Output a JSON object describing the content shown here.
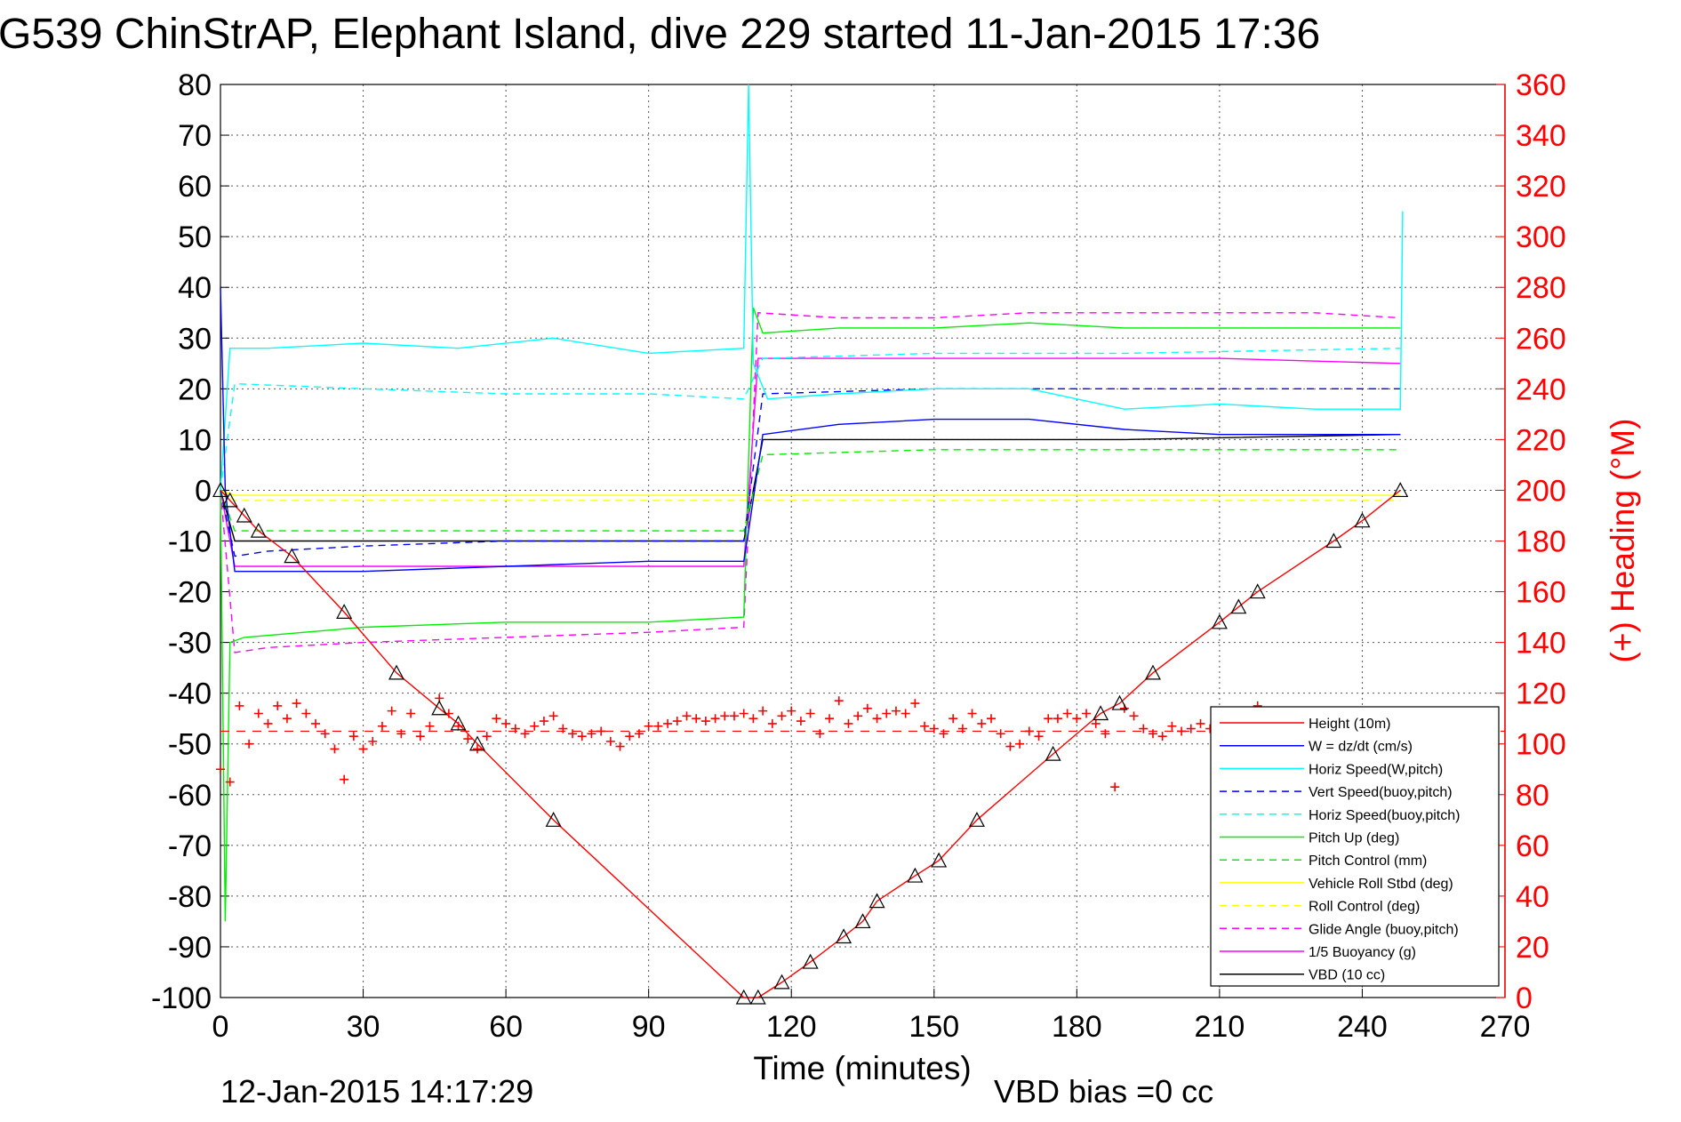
{
  "title": "G539 ChinStrAP, Elephant Island, dive 229 started 11-Jan-2015 17:36",
  "footer": {
    "timestamp": "12-Jan-2015 14:17:29",
    "vbd_bias": "VBD bias =0 cc"
  },
  "chart_data": {
    "type": "line",
    "title": "G539 ChinStrAP, Elephant Island, dive 229 started 11-Jan-2015 17:36",
    "xlabel": "Time (minutes)",
    "ylabel": "",
    "ylabel_right": "(+) Heading (°M)",
    "xlim": [
      0,
      270
    ],
    "ylim": [
      -100,
      80
    ],
    "ylim_right": [
      0,
      360
    ],
    "xticks": [
      0,
      30,
      60,
      90,
      120,
      150,
      180,
      210,
      240,
      270
    ],
    "yticks": [
      -100,
      -90,
      -80,
      -70,
      -60,
      -50,
      -40,
      -30,
      -20,
      -10,
      0,
      10,
      20,
      30,
      40,
      50,
      60,
      70,
      80
    ],
    "yticks_right": [
      0,
      20,
      40,
      60,
      80,
      100,
      120,
      140,
      160,
      180,
      200,
      220,
      240,
      260,
      280,
      300,
      320,
      340,
      360
    ],
    "grid": true,
    "legend_position": "bottom-right",
    "colors": {
      "red": "#ff0000",
      "blue": "#0000ff",
      "cyan": "#00ffff",
      "green": "#00ee00",
      "yellow": "#ffff00",
      "magenta": "#ff00ff",
      "black": "#000000"
    },
    "series": [
      {
        "name": "Height (10m)",
        "color": "#ff0000",
        "style": "solid",
        "marker": "triangle",
        "x": [
          0,
          2,
          5,
          8,
          15,
          26,
          37,
          46,
          50,
          54,
          70,
          110,
          113,
          118,
          124,
          131,
          135,
          138,
          146,
          151,
          159,
          175,
          185,
          189,
          196,
          210,
          214,
          218,
          234,
          240,
          248
        ],
        "y": [
          0,
          -2,
          -5,
          -8,
          -13,
          -24,
          -36,
          -43,
          -46,
          -50,
          -65,
          -100,
          -100,
          -97,
          -93,
          -88,
          -85,
          -81,
          -76,
          -73,
          -65,
          -52,
          -44,
          -42,
          -36,
          -26,
          -23,
          -20,
          -10,
          -6,
          0
        ]
      },
      {
        "name": "W = dz/dt (cm/s)",
        "color": "#0000ff",
        "style": "solid",
        "x": [
          0,
          1,
          3,
          10,
          30,
          60,
          90,
          110,
          111,
          114,
          130,
          150,
          170,
          190,
          210,
          230,
          248
        ],
        "y": [
          40,
          0,
          -16,
          -16,
          -16,
          -15,
          -14,
          -14,
          -8,
          11,
          13,
          14,
          14,
          12,
          11,
          11,
          11
        ]
      },
      {
        "name": "Horiz Speed(W,pitch)",
        "color": "#00ffff",
        "style": "solid",
        "x": [
          0,
          2,
          10,
          30,
          50,
          70,
          90,
          110,
          111,
          112,
          115,
          130,
          150,
          170,
          190,
          210,
          230,
          248,
          248.5
        ],
        "y": [
          0,
          28,
          28,
          29,
          28,
          30,
          27,
          28,
          80,
          25,
          18,
          19,
          20,
          20,
          16,
          17,
          16,
          16,
          55
        ]
      },
      {
        "name": "Vert Speed(buoy,pitch)",
        "color": "#0000ff",
        "style": "dashed",
        "x": [
          0,
          3,
          10,
          30,
          60,
          90,
          110,
          114,
          150,
          190,
          248
        ],
        "y": [
          0,
          -13,
          -12,
          -11,
          -10,
          -10,
          -10,
          19,
          20,
          20,
          20
        ]
      },
      {
        "name": "Horiz Speed(buoy,pitch)",
        "color": "#00ffff",
        "style": "dashed",
        "x": [
          0,
          3,
          30,
          60,
          90,
          110,
          114,
          150,
          190,
          248
        ],
        "y": [
          0,
          21,
          20,
          19,
          19,
          18,
          26,
          27,
          27,
          28
        ]
      },
      {
        "name": "Pitch Up (deg)",
        "color": "#00ee00",
        "style": "solid",
        "x": [
          0,
          1,
          2,
          5,
          30,
          60,
          90,
          110,
          112,
          114,
          130,
          150,
          170,
          190,
          210,
          230,
          248
        ],
        "y": [
          0,
          -85,
          -30,
          -29,
          -27,
          -26,
          -26,
          -25,
          36,
          31,
          32,
          32,
          33,
          32,
          32,
          32,
          32
        ]
      },
      {
        "name": "Pitch Control (mm)",
        "color": "#00ee00",
        "style": "dashed",
        "x": [
          0,
          3,
          30,
          60,
          90,
          110,
          114,
          150,
          190,
          248
        ],
        "y": [
          0,
          -8,
          -8,
          -8,
          -8,
          -8,
          7,
          8,
          8,
          8
        ]
      },
      {
        "name": "Vehicle Roll Stbd (deg)",
        "color": "#ffff00",
        "style": "solid",
        "x": [
          0,
          3,
          30,
          60,
          90,
          110,
          114,
          150,
          190,
          230,
          248
        ],
        "y": [
          0,
          -1,
          -1,
          -1,
          -1,
          -1,
          -1,
          -1,
          -1,
          -1,
          -1
        ]
      },
      {
        "name": "Roll Control (deg)",
        "color": "#ffff00",
        "style": "dashed",
        "x": [
          0,
          3,
          30,
          60,
          90,
          110,
          114,
          150,
          190,
          248
        ],
        "y": [
          0,
          -2,
          -2,
          -2,
          -2,
          -2,
          -2,
          -2,
          -2,
          -2
        ]
      },
      {
        "name": "Glide Angle (buoy,pitch)",
        "color": "#ff00ff",
        "style": "dashed",
        "x": [
          0,
          3,
          10,
          30,
          60,
          90,
          110,
          113,
          130,
          150,
          170,
          190,
          210,
          230,
          248
        ],
        "y": [
          0,
          -32,
          -31,
          -30,
          -29,
          -28,
          -27,
          35,
          34,
          34,
          35,
          35,
          35,
          35,
          34
        ]
      },
      {
        "name": "1/5 Buoyancy (g)",
        "color": "#ff00ff",
        "style": "solid",
        "x": [
          0,
          3,
          30,
          60,
          90,
          110,
          113,
          150,
          210,
          248
        ],
        "y": [
          0,
          -15,
          -15,
          -15,
          -15,
          -15,
          26,
          26,
          26,
          25
        ]
      },
      {
        "name": "VBD (10 cc)",
        "color": "#000000",
        "style": "solid",
        "x": [
          0,
          3,
          30,
          60,
          90,
          110,
          114,
          150,
          190,
          248
        ],
        "y": [
          0,
          -10,
          -10,
          -10,
          -10,
          -10,
          10,
          10,
          10,
          11
        ]
      }
    ],
    "heading": {
      "color": "#ff0000",
      "marker": "plus",
      "axis": "right",
      "x": [
        0,
        2,
        4,
        6,
        8,
        10,
        12,
        14,
        16,
        18,
        20,
        22,
        24,
        26,
        28,
        30,
        32,
        34,
        36,
        38,
        40,
        42,
        44,
        46,
        48,
        50,
        52,
        54,
        56,
        58,
        60,
        62,
        64,
        66,
        68,
        70,
        72,
        74,
        76,
        78,
        80,
        82,
        84,
        86,
        88,
        90,
        92,
        94,
        96,
        98,
        100,
        102,
        104,
        106,
        108,
        110,
        112,
        114,
        116,
        118,
        120,
        122,
        124,
        126,
        128,
        130,
        132,
        134,
        136,
        138,
        140,
        142,
        144,
        146,
        148,
        150,
        152,
        154,
        156,
        158,
        160,
        162,
        164,
        166,
        168,
        170,
        172,
        174,
        176,
        178,
        180,
        182,
        184,
        186,
        188,
        190,
        192,
        194,
        196,
        198,
        200,
        202,
        204,
        206,
        208,
        210,
        212,
        214,
        216,
        218,
        220
      ],
      "y": [
        90,
        85,
        115,
        100,
        112,
        108,
        115,
        110,
        116,
        112,
        108,
        104,
        98,
        86,
        103,
        98,
        101,
        107,
        113,
        104,
        112,
        103,
        107,
        118,
        112,
        107,
        102,
        98,
        103,
        110,
        108,
        106,
        104,
        107,
        109,
        111,
        106,
        104,
        103,
        104,
        105,
        101,
        99,
        103,
        104,
        107,
        107,
        108,
        109,
        111,
        110,
        109,
        110,
        111,
        111,
        112,
        110,
        113,
        108,
        111,
        113,
        109,
        112,
        104,
        110,
        117,
        108,
        111,
        114,
        110,
        112,
        113,
        112,
        116,
        107,
        106,
        104,
        110,
        106,
        112,
        108,
        110,
        104,
        99,
        100,
        105,
        103,
        110,
        110,
        112,
        110,
        112,
        108,
        104,
        83,
        114,
        111,
        106,
        104,
        103,
        107,
        105,
        106,
        108,
        106,
        112,
        110,
        113,
        109,
        115,
        108
      ]
    },
    "heading_mean": {
      "color": "#ff0000",
      "style": "dashed",
      "axis": "right",
      "y": 105
    }
  }
}
